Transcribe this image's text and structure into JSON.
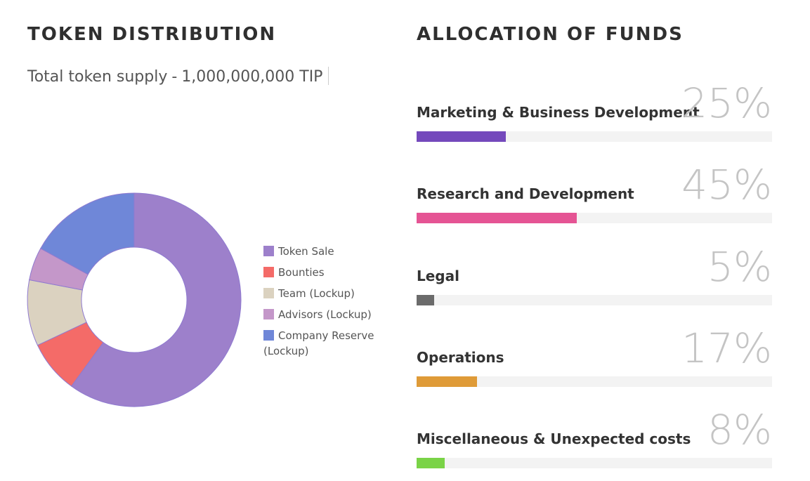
{
  "token_distribution": {
    "title": "TOKEN DISTRIBUTION",
    "supply_label": "Total token supply",
    "supply_separator": "-",
    "supply_value": "1,000,000,000 TIP"
  },
  "allocation": {
    "title": "ALLOCATION OF FUNDS",
    "items": [
      {
        "label": "Marketing & Business Development",
        "percent_text": "25%",
        "value": 25,
        "color": "#7449bc"
      },
      {
        "label": "Research and Development",
        "percent_text": "45%",
        "value": 45,
        "color": "#e55494"
      },
      {
        "label": "Legal",
        "percent_text": "5%",
        "value": 5,
        "color": "#6b6b6b"
      },
      {
        "label": "Operations",
        "percent_text": "17%",
        "value": 17,
        "color": "#df9b38"
      },
      {
        "label": "Miscellaneous & Unexpected costs",
        "percent_text": "8%",
        "value": 8,
        "color": "#7ad347"
      }
    ]
  },
  "chart_data": [
    {
      "type": "pie",
      "categories": [
        "Token Sale",
        "Bounties",
        "Team (Lockup)",
        "Advisors (Lockup)",
        "Company Reserve (Lockup)"
      ],
      "values": [
        60,
        8,
        10,
        5,
        17
      ],
      "colors": [
        "#9d80cb",
        "#f46b68",
        "#dbd2c0",
        "#c497c9",
        "#6f87d8"
      ],
      "legend": "right"
    },
    {
      "type": "bar",
      "categories": [
        "Marketing & Business Development",
        "Research and Development",
        "Legal",
        "Operations",
        "Miscellaneous & Unexpected costs"
      ],
      "values": [
        25,
        45,
        5,
        17,
        8
      ],
      "ylim": [
        0,
        100
      ]
    }
  ]
}
